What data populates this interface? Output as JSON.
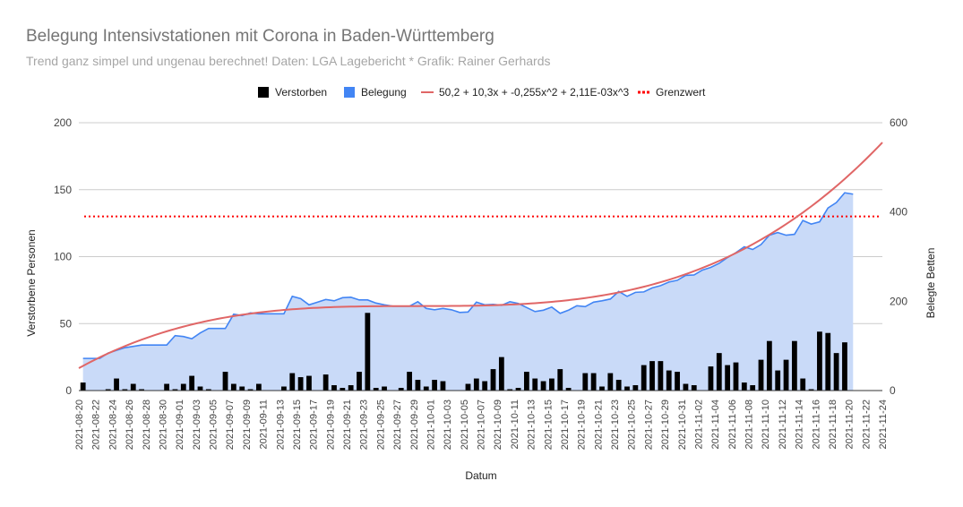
{
  "chart_data": {
    "type": "combo",
    "title": "Belegung Intensivstationen mit Corona in Baden-Württemberg",
    "subtitle": "Trend ganz simpel und ungenau berechnet! Daten: LGA Lagebericht * Grafik: Rainer Gerhards",
    "xlabel": "Datum",
    "ylabel_left": "Verstorbene Personen",
    "ylabel_right": "Belegte Betten",
    "ylim_left": [
      0,
      200
    ],
    "ylim_right": [
      0,
      600
    ],
    "yticks_left": [
      "0",
      "50",
      "100",
      "150",
      "200"
    ],
    "yticks_right": [
      "0",
      "200",
      "400",
      "600"
    ],
    "grid": true,
    "legend_position": "top",
    "date_start": "2021-08-20",
    "date_end": "2021-11-24",
    "xtick_labels": [
      "2021-08-20",
      "2021-08-22",
      "2021-08-24",
      "2021-08-26",
      "2021-08-28",
      "2021-08-30",
      "2021-09-01",
      "2021-09-03",
      "2021-09-05",
      "2021-09-07",
      "2021-09-09",
      "2021-09-11",
      "2021-09-13",
      "2021-09-15",
      "2021-09-17",
      "2021-09-19",
      "2021-09-21",
      "2021-09-23",
      "2021-09-25",
      "2021-09-27",
      "2021-09-29",
      "2021-10-01",
      "2021-10-03",
      "2021-10-05",
      "2021-10-07",
      "2021-10-09",
      "2021-10-11",
      "2021-10-13",
      "2021-10-15",
      "2021-10-17",
      "2021-10-19",
      "2021-10-21",
      "2021-10-23",
      "2021-10-25",
      "2021-10-27",
      "2021-10-29",
      "2021-10-31",
      "2021-11-02",
      "2021-11-04",
      "2021-11-06",
      "2021-11-08",
      "2021-11-10",
      "2021-11-12",
      "2021-11-14",
      "2021-11-16",
      "2021-11-18",
      "2021-11-20",
      "2021-11-22",
      "2021-11-24"
    ],
    "legend": [
      {
        "name": "Verstorben",
        "color": "#000000",
        "kind": "box"
      },
      {
        "name": "Belegung",
        "color": "#4285f4",
        "kind": "box"
      },
      {
        "name": "50,2 + 10,3x + -0,255x^2 + 2,11E-03x^3",
        "color": "#e06666",
        "kind": "line"
      },
      {
        "name": "Grenzwert",
        "color": "#ff0000",
        "kind": "dotted"
      }
    ],
    "series": [
      {
        "name": "Verstorben",
        "type": "bar",
        "axis": "left",
        "color": "#000000",
        "start_date": "2021-08-20",
        "values": [
          6,
          0,
          0,
          1,
          9,
          1,
          5,
          1,
          0,
          0,
          5,
          1,
          5,
          11,
          3,
          1,
          0,
          14,
          5,
          3,
          1,
          5,
          0,
          0,
          3,
          13,
          10,
          11,
          0,
          12,
          4,
          2,
          4,
          14,
          58,
          2,
          3,
          0,
          2,
          14,
          8,
          3,
          8,
          7,
          0,
          0,
          5,
          9,
          7,
          16,
          25,
          1,
          2,
          14,
          9,
          7,
          9,
          16,
          2,
          0,
          13,
          13,
          3,
          13,
          8,
          3,
          4,
          19,
          22,
          22,
          15,
          14,
          5,
          4,
          0,
          18,
          28,
          19,
          21,
          6,
          4,
          23,
          37,
          15,
          23,
          37,
          9,
          1,
          44,
          43,
          28,
          36
        ]
      },
      {
        "name": "Belegung",
        "type": "area",
        "axis": "right",
        "color": "#4285f4",
        "fill": "#c9daf8",
        "start_date": "2021-08-20",
        "values": [
          72,
          72,
          72,
          84,
          90,
          96,
          99,
          102,
          102,
          102,
          102,
          123,
          121,
          116,
          129,
          139,
          139,
          139,
          171,
          168,
          174,
          172,
          172,
          172,
          172,
          211,
          206,
          192,
          198,
          204,
          201,
          208,
          209,
          203,
          203,
          196,
          192,
          189,
          189,
          189,
          199,
          184,
          181,
          184,
          181,
          175,
          176,
          198,
          192,
          193,
          191,
          199,
          195,
          186,
          177,
          180,
          187,
          173,
          180,
          190,
          188,
          198,
          201,
          205,
          222,
          211,
          220,
          221,
          230,
          235,
          243,
          247,
          258,
          259,
          270,
          276,
          285,
          298,
          309,
          322,
          316,
          327,
          348,
          354,
          348,
          350,
          381,
          373,
          378,
          409,
          421,
          443,
          440
        ]
      },
      {
        "name": "50,2 + 10,3x + -0,255x^2 + 2,11E-03x^3",
        "type": "trend",
        "axis": "right",
        "color": "#e06666",
        "coefficients": [
          50.2,
          10.3,
          -0.255,
          0.00211
        ]
      },
      {
        "name": "Grenzwert",
        "type": "hline",
        "axis": "right",
        "color": "#ff0000",
        "value": 390
      }
    ]
  }
}
